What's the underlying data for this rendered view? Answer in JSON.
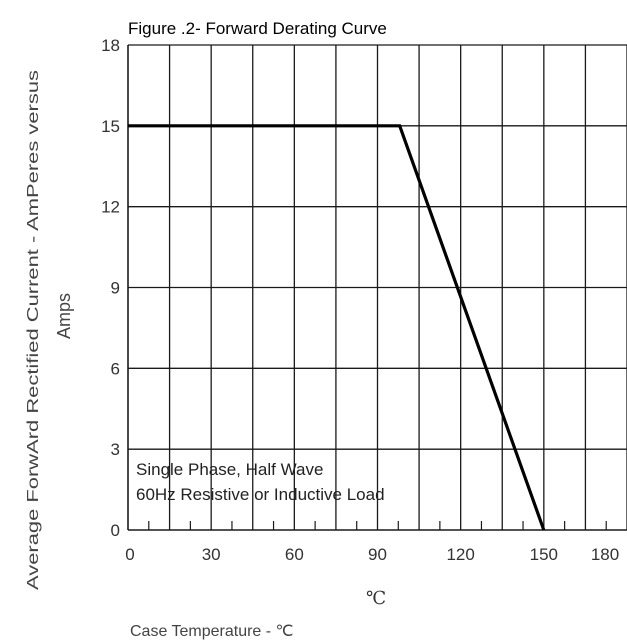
{
  "chart_data": {
    "type": "line",
    "title": "Figure .2- Forward Derating Curve",
    "xlabel": "Case Temperature  -  ℃",
    "xunit": "℃",
    "ylabel_line1": "Average ForwArd Rectified Current  -  AmPeres versus",
    "ylabel_line2": "Amps",
    "xlim": [
      0,
      180
    ],
    "ylim": [
      0,
      18
    ],
    "xticks": [
      0,
      30,
      60,
      90,
      120,
      150,
      180
    ],
    "yticks": [
      0,
      3,
      6,
      9,
      12,
      15,
      18
    ],
    "x_grid_step": 15,
    "y_grid_step": 3,
    "grid": true,
    "annotation_lines": [
      "Single Phase, Half Wave",
      "60Hz Resistive or Inductive Load"
    ],
    "series": [
      {
        "x": [
          0,
          98,
          150
        ],
        "y": [
          15,
          15,
          0
        ]
      }
    ]
  }
}
